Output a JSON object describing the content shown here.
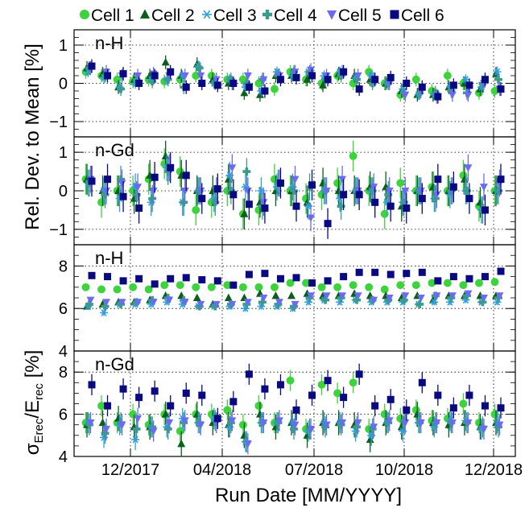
{
  "chart_data": {
    "type": "scatter",
    "legend": {
      "placement": "top",
      "entries": [
        {
          "name": "Cell 1",
          "color": "#3dd33d",
          "marker": "circle"
        },
        {
          "name": "Cell 2",
          "color": "#0b5e1b",
          "marker": "triangle-up"
        },
        {
          "name": "Cell 3",
          "color": "#2f9fe0",
          "marker": "asterisk"
        },
        {
          "name": "Cell 4",
          "color": "#3a9b8c",
          "marker": "cross"
        },
        {
          "name": "Cell 5",
          "color": "#6b6bf2",
          "marker": "triangle-down"
        },
        {
          "name": "Cell 6",
          "color": "#0a0a80",
          "marker": "square"
        }
      ]
    },
    "xlabel": "Run Date [MM/YYYY]",
    "xticks": [
      "12/2017",
      "04/2018",
      "07/2018",
      "10/2018",
      "12/2018"
    ],
    "grid": true,
    "panels": [
      {
        "tag": "n-H",
        "ylim": [
          -1.4,
          1.4
        ],
        "yticks": [
          "1",
          "0",
          "−1"
        ],
        "yticks_v": [
          1,
          0,
          -1
        ],
        "series": [
          [
            0.3,
            0.2,
            0.1,
            0.05,
            0.1,
            0.05,
            0.1,
            0.2,
            0.2,
            0.1,
            0.1,
            0.0,
            -0.15,
            0.3,
            0.1,
            0.0,
            0.2,
            0.0,
            0.3,
            0.0,
            -0.3,
            0.1,
            -0.2,
            0.2,
            0.0,
            -0.25,
            -0.2
          ],
          [
            0.4,
            0.25,
            -0.1,
            0.1,
            0.2,
            0.55,
            0.2,
            0.5,
            0.1,
            0.0,
            -0.25,
            -0.3,
            0.2,
            0.2,
            0.1,
            -0.05,
            0.25,
            0.2,
            0.1,
            0.0,
            -0.2,
            -0.3,
            -0.3,
            -0.1,
            0.0,
            -0.15,
            0.25
          ],
          [
            0.3,
            0.15,
            -0.1,
            0.0,
            0.1,
            0.1,
            0.2,
            0.45,
            0.0,
            0.1,
            -0.1,
            -0.2,
            0.3,
            0.2,
            0.3,
            0.2,
            0.3,
            0.15,
            0.2,
            0.0,
            -0.15,
            -0.3,
            -0.3,
            -0.1,
            0.1,
            -0.1,
            0.3
          ],
          [
            0.4,
            0.2,
            -0.15,
            0.1,
            0.05,
            0.1,
            -0.1,
            0.4,
            0.0,
            0.1,
            0.0,
            0.1,
            0.2,
            0.3,
            0.3,
            0.1,
            0.2,
            0.1,
            0.0,
            0.0,
            -0.25,
            -0.25,
            -0.25,
            -0.2,
            -0.25,
            0.0,
            0.1
          ],
          [
            0.4,
            0.3,
            0.2,
            0.2,
            0.25,
            0.2,
            0.2,
            0.2,
            0.1,
            0.0,
            0.2,
            0.1,
            0.2,
            0.3,
            0.35,
            0.2,
            0.3,
            0.2,
            0.1,
            0.0,
            -0.3,
            -0.2,
            -0.35,
            -0.3,
            -0.3,
            0.0,
            -0.15
          ],
          [
            0.45,
            0.2,
            0.25,
            0.0,
            0.2,
            0.3,
            -0.1,
            0.0,
            -0.05,
            0.0,
            -0.1,
            -0.2,
            0.1,
            0.15,
            0.2,
            0.1,
            0.3,
            -0.15,
            0.1,
            0.15,
            0.0,
            -0.1,
            -0.35,
            -0.05,
            -0.05,
            0.1,
            -0.15
          ]
        ],
        "err": [
          0.18,
          0.18,
          0.14,
          0.18,
          0.18,
          0.18
        ]
      },
      {
        "tag": "n-Gd",
        "ylim": [
          -1.4,
          1.4
        ],
        "yticks": [
          "1",
          "0",
          "−1"
        ],
        "yticks_v": [
          1,
          0,
          -1
        ],
        "series": [
          [
            0.3,
            -0.3,
            0.0,
            0.0,
            0.3,
            0.7,
            0.5,
            -0.5,
            -0.3,
            0.0,
            -0.6,
            -0.5,
            0.3,
            0.0,
            -0.2,
            -0.1,
            0.2,
            0.9,
            0.0,
            -0.6,
            0.2,
            0.0,
            0.1,
            0.0,
            0.4,
            -0.4,
            0.0
          ],
          [
            0.3,
            0.0,
            0.0,
            -0.2,
            0.4,
            0.9,
            0.4,
            0.0,
            0.0,
            0.3,
            -0.6,
            -0.3,
            0.0,
            0.0,
            -0.3,
            0.2,
            0.0,
            0.0,
            0.1,
            0.1,
            -0.4,
            0.0,
            0.1,
            0.0,
            0.3,
            -0.3,
            0.0
          ],
          [
            0.2,
            0.0,
            -0.2,
            0.1,
            -0.3,
            0.6,
            -0.3,
            0.0,
            -0.2,
            0.4,
            0.1,
            0.0,
            0.1,
            0.1,
            -0.4,
            0.0,
            -0.2,
            0.0,
            0.0,
            -0.3,
            -0.3,
            0.0,
            -0.2,
            -0.1,
            0.0,
            -0.5,
            0.0
          ],
          [
            0.2,
            -0.1,
            0.3,
            -0.1,
            -0.2,
            0.5,
            -0.3,
            0.0,
            -0.3,
            0.0,
            0.5,
            -0.4,
            0.2,
            0.0,
            0.1,
            0.0,
            -0.4,
            0.0,
            0.0,
            -0.1,
            -0.3,
            0.0,
            -0.2,
            0.0,
            0.0,
            -0.5,
            0.0
          ],
          [
            0.3,
            0.0,
            0.2,
            0.1,
            0.0,
            0.6,
            0.0,
            0.0,
            0.0,
            0.6,
            0.0,
            -0.3,
            0.2,
            0.3,
            -0.7,
            0.0,
            0.3,
            0.0,
            0.1,
            0.0,
            0.0,
            0.0,
            -0.1,
            0.0,
            0.6,
            0.1,
            0.2
          ],
          [
            0.25,
            0.3,
            -0.15,
            -0.45,
            0.35,
            0.6,
            0.4,
            -0.2,
            0.05,
            -0.1,
            -0.35,
            -0.45,
            0.2,
            -0.4,
            0.15,
            -0.85,
            -0.1,
            -0.1,
            -0.3,
            -0.4,
            -0.45,
            -0.2,
            0.3,
            0.1,
            -0.2,
            -0.5,
            0.3
          ]
        ],
        "err": [
          0.4,
          0.4,
          0.35,
          0.35,
          0.35,
          0.4
        ]
      },
      {
        "tag": "n-H",
        "ylim": [
          4,
          9
        ],
        "yticks": [
          "8",
          "6",
          "4"
        ],
        "yticks_v": [
          8,
          6,
          4
        ],
        "series": [
          [
            7.0,
            6.9,
            6.9,
            7.0,
            6.9,
            7.1,
            7.1,
            7.0,
            7.0,
            7.1,
            7.0,
            7.0,
            7.0,
            7.2,
            7.2,
            7.0,
            7.0,
            7.1,
            7.0,
            6.9,
            7.1,
            7.1,
            7.2,
            7.2,
            7.1,
            7.2,
            7.25
          ],
          [
            6.1,
            6.2,
            6.3,
            6.3,
            6.4,
            6.6,
            6.6,
            6.5,
            6.2,
            6.5,
            6.5,
            6.7,
            6.6,
            6.6,
            6.7,
            6.6,
            6.6,
            6.7,
            6.6,
            6.6,
            6.5,
            6.6,
            6.4,
            6.6,
            6.6,
            6.6,
            6.6
          ],
          [
            6.1,
            5.8,
            6.2,
            6.2,
            6.2,
            6.3,
            6.2,
            6.1,
            6.1,
            6.1,
            6.0,
            6.1,
            6.1,
            6.0,
            6.3,
            6.4,
            6.3,
            6.4,
            6.3,
            6.3,
            6.3,
            6.2,
            6.3,
            6.3,
            6.4,
            6.3,
            6.3
          ],
          [
            6.2,
            6.1,
            6.2,
            6.3,
            6.4,
            6.5,
            6.4,
            6.1,
            6.1,
            6.2,
            6.2,
            6.3,
            6.2,
            6.1,
            6.5,
            6.4,
            6.5,
            6.4,
            6.4,
            6.4,
            6.4,
            6.2,
            6.6,
            6.5,
            6.6,
            6.3,
            6.5
          ],
          [
            6.4,
            6.3,
            6.3,
            6.3,
            6.3,
            6.4,
            6.3,
            6.2,
            6.2,
            6.2,
            6.3,
            6.5,
            6.3,
            6.2,
            6.6,
            6.6,
            6.6,
            6.6,
            6.4,
            6.5,
            6.6,
            6.5,
            6.6,
            6.6,
            6.7,
            6.5,
            6.6
          ],
          [
            7.55,
            7.5,
            7.3,
            7.4,
            7.15,
            7.4,
            7.45,
            7.35,
            7.3,
            7.1,
            7.6,
            7.65,
            7.4,
            7.45,
            7.2,
            7.3,
            7.5,
            7.7,
            7.7,
            7.6,
            7.65,
            7.7,
            7.3,
            7.5,
            7.4,
            7.5,
            7.75
          ]
        ],
        "err": [
          0.12,
          0.12,
          0.15,
          0.12,
          0.12,
          0.1
        ]
      },
      {
        "tag": "n-Gd",
        "ylim": [
          4,
          9
        ],
        "yticks": [
          "8",
          "6",
          "4"
        ],
        "yticks_v": [
          8,
          6,
          4
        ],
        "series": [
          [
            5.6,
            6.4,
            5.6,
            6.0,
            5.5,
            6.0,
            5.2,
            6.0,
            6.0,
            6.2,
            5.5,
            6.4,
            5.6,
            7.6,
            5.3,
            7.4,
            7.0,
            7.5,
            5.3,
            6.0,
            5.8,
            6.2,
            5.7,
            5.8,
            6.5,
            5.6,
            6.0
          ],
          [
            5.5,
            5.6,
            5.8,
            5.4,
            5.4,
            6.0,
            4.6,
            6.0,
            5.6,
            5.5,
            5.0,
            6.0,
            5.4,
            5.6,
            5.0,
            5.6,
            5.6,
            5.5,
            4.8,
            5.6,
            5.4,
            6.0,
            5.6,
            5.5,
            5.6,
            5.4,
            5.6
          ],
          [
            5.6,
            4.9,
            5.5,
            4.8,
            5.4,
            5.4,
            5.8,
            5.6,
            5.8,
            5.4,
            4.7,
            5.6,
            5.6,
            5.6,
            5.2,
            5.6,
            5.6,
            5.2,
            5.0,
            5.6,
            5.2,
            5.6,
            5.4,
            5.7,
            5.7,
            5.3,
            5.6
          ],
          [
            5.5,
            5.1,
            5.6,
            5.3,
            5.4,
            5.3,
            5.6,
            5.6,
            5.7,
            5.6,
            4.7,
            5.6,
            5.6,
            5.3,
            5.3,
            5.4,
            5.5,
            5.4,
            5.3,
            5.6,
            5.7,
            5.6,
            5.6,
            5.6,
            5.6,
            5.4,
            5.4
          ],
          [
            5.6,
            5.3,
            5.5,
            5.8,
            5.2,
            5.6,
            5.7,
            5.5,
            5.6,
            5.7,
            4.6,
            5.6,
            5.7,
            5.5,
            5.3,
            5.5,
            5.6,
            5.6,
            5.4,
            5.7,
            5.6,
            5.6,
            5.6,
            5.6,
            5.6,
            5.3,
            5.5
          ],
          [
            7.4,
            6.4,
            7.2,
            6.8,
            7.1,
            6.4,
            7.0,
            6.9,
            5.8,
            6.6,
            7.9,
            7.2,
            7.4,
            6.2,
            6.9,
            7.6,
            6.8,
            7.9,
            6.4,
            6.7,
            6.2,
            7.5,
            6.9,
            6.3,
            6.9,
            6.4,
            6.3
          ]
        ],
        "err": [
          0.5,
          0.6,
          0.5,
          0.5,
          0.5,
          0.5
        ]
      }
    ]
  },
  "labels": {
    "ylabel_top": "Rel. Dev. to Mean [%]",
    "ylabel_bottom_sigma": "σ",
    "ylabel_bottom_sub1": "Erec",
    "ylabel_bottom_slash": "/E",
    "ylabel_bottom_sub2": "rec",
    "ylabel_bottom_unit": " [%]"
  }
}
